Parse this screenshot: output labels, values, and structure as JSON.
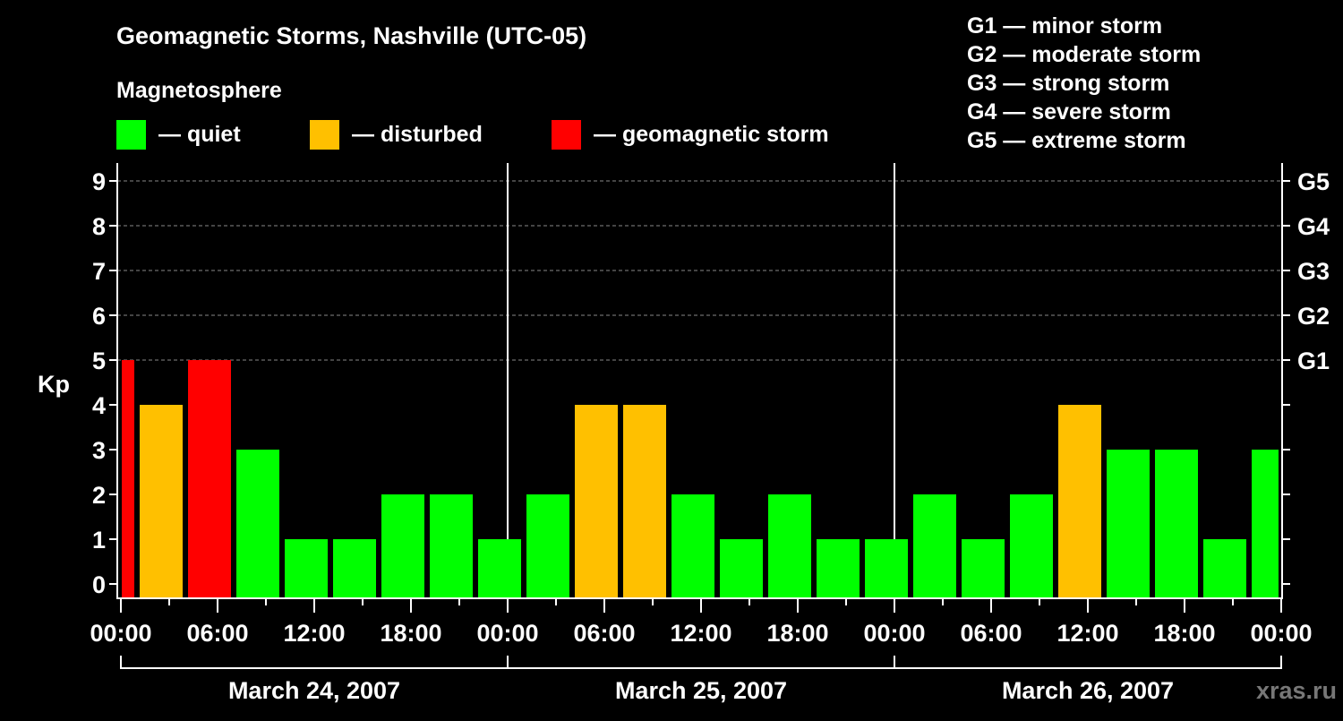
{
  "chart_data": {
    "type": "bar",
    "title": "Geomagnetic Storms, Nashville (UTC-05)",
    "legend_title": "Magnetosphere",
    "legend": [
      {
        "label": "— quiet",
        "color": "#00ff00"
      },
      {
        "label": "— disturbed",
        "color": "#ffc000"
      },
      {
        "label": "— geomagnetic storm",
        "color": "#ff0000"
      }
    ],
    "storm_scale": [
      "G1 — minor storm",
      "G2 — moderate storm",
      "G3 — strong storm",
      "G4 — severe storm",
      "G5 — extreme storm"
    ],
    "ylabel": "Kp",
    "ylim": [
      0,
      9
    ],
    "y_ticks": [
      "0",
      "1",
      "2",
      "3",
      "4",
      "5",
      "6",
      "7",
      "8",
      "9"
    ],
    "right_ticks": [
      {
        "kp": 5,
        "label": "G1"
      },
      {
        "kp": 6,
        "label": "G2"
      },
      {
        "kp": 7,
        "label": "G3"
      },
      {
        "kp": 8,
        "label": "G4"
      },
      {
        "kp": 9,
        "label": "G5"
      }
    ],
    "x_tick_labels": [
      "00:00",
      "06:00",
      "12:00",
      "18:00",
      "00:00",
      "06:00",
      "12:00",
      "18:00",
      "00:00",
      "06:00",
      "12:00",
      "18:00",
      "00:00"
    ],
    "days": [
      "March 24, 2007",
      "March 25, 2007",
      "March 26, 2007"
    ],
    "bar_start_hours": [
      -2,
      1,
      4,
      7,
      10,
      13,
      16,
      19,
      22,
      25,
      28,
      31,
      34,
      37,
      40,
      43,
      46,
      49,
      52,
      55,
      58,
      61,
      64,
      67,
      70
    ],
    "bar_duration_hours": 3,
    "values": [
      5,
      4,
      5,
      3,
      1,
      1,
      2,
      2,
      1,
      2,
      4,
      4,
      2,
      1,
      2,
      1,
      1,
      2,
      1,
      2,
      4,
      3,
      3,
      1,
      3
    ],
    "color_rules": {
      "quiet_max": 3,
      "disturbed": 4,
      "storm_min": 5
    },
    "watermark": "xras.ru"
  }
}
